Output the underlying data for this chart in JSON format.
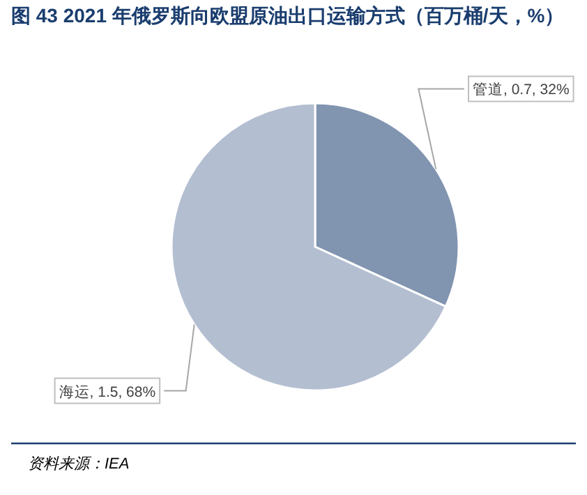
{
  "chart_data": {
    "type": "pie",
    "title": "图 43  2021 年俄罗斯向欧盟原油出口运输方式（百万桶/天，%）",
    "categories": [
      "管道",
      "海运"
    ],
    "values": [
      0.7,
      1.5
    ],
    "value_labels": [
      "0.7, 32%",
      "1.5, 68%"
    ],
    "colors": [
      "#8194b0",
      "#b3bed1"
    ],
    "annotations": [
      "资料来源：IEA"
    ]
  }
}
